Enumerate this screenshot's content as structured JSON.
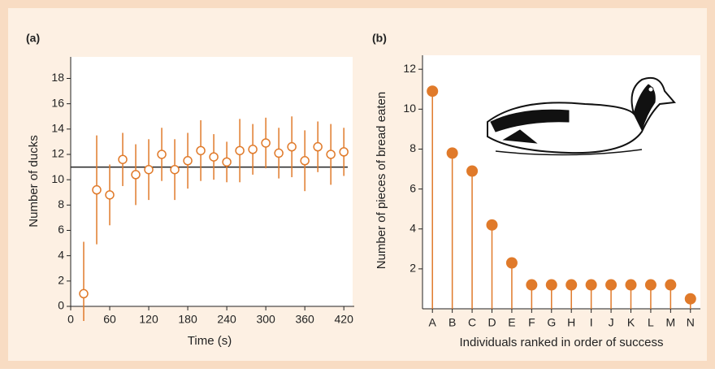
{
  "chart_data": [
    {
      "type": "errorscatter",
      "title": "(a)",
      "x_label": "Time (s)",
      "y_label": "Number of ducks",
      "x": [
        20,
        40,
        60,
        80,
        100,
        120,
        140,
        160,
        180,
        200,
        220,
        240,
        260,
        280,
        300,
        320,
        340,
        360,
        380,
        400,
        420
      ],
      "values": [
        1.0,
        9.2,
        8.8,
        11.6,
        10.4,
        10.8,
        12.0,
        10.8,
        11.5,
        12.3,
        11.8,
        11.4,
        12.3,
        12.4,
        12.9,
        12.1,
        12.6,
        11.5,
        12.6,
        12.0,
        12.2
      ],
      "errors": [
        4.1,
        4.3,
        2.4,
        2.1,
        2.4,
        2.4,
        2.1,
        2.4,
        2.2,
        2.4,
        1.8,
        1.6,
        2.5,
        2.0,
        2.0,
        2.0,
        2.4,
        2.4,
        2.0,
        2.4,
        1.9
      ],
      "reference_line": 11,
      "color": "#e07a2a",
      "xlim": [
        0,
        436
      ],
      "ylim": [
        0,
        19.7
      ],
      "xticks": [
        0,
        60,
        120,
        180,
        240,
        300,
        360,
        420
      ],
      "yticks": [
        0,
        2,
        4,
        6,
        8,
        10,
        12,
        14,
        16,
        18
      ]
    },
    {
      "type": "lollipop",
      "title": "(b)",
      "x_label": "Individuals ranked in order of success",
      "y_label": "Number of pieces of bread eaten",
      "categories": [
        "A",
        "B",
        "C",
        "D",
        "E",
        "F",
        "G",
        "H",
        "I",
        "J",
        "K",
        "L",
        "M",
        "N"
      ],
      "values": [
        10.9,
        7.8,
        6.9,
        4.2,
        2.3,
        1.2,
        1.2,
        1.2,
        1.2,
        1.2,
        1.2,
        1.2,
        1.2,
        0.5
      ],
      "color": "#e07a2a",
      "ylim": [
        0,
        12.7
      ],
      "yticks": [
        2,
        4,
        6,
        8,
        10,
        12
      ]
    }
  ]
}
